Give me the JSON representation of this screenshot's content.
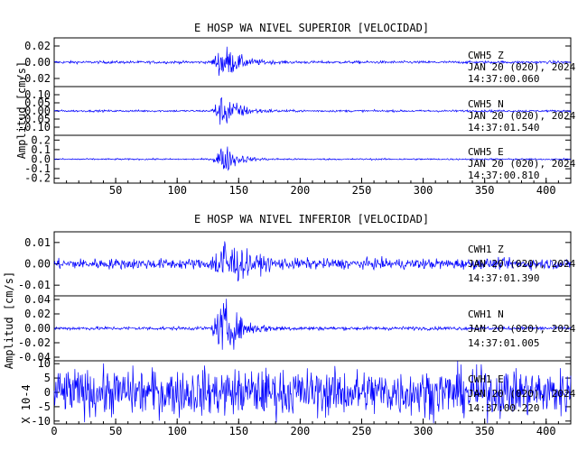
{
  "chart_data": [
    {
      "type": "line",
      "title": "E HOSP WA NIVEL SUPERIOR [VELOCIDAD]",
      "ylabel": "Amplitud [cm/s]",
      "xlabel": "",
      "xlim": [
        0,
        420
      ],
      "x_ticks": [
        50,
        100,
        150,
        200,
        250,
        300,
        350,
        400
      ],
      "x_tick_labels": [
        "50",
        "100",
        "150",
        "200",
        "250",
        "300",
        "350",
        "400"
      ],
      "trace_color": "#0000ff",
      "series": [
        {
          "name": "CWH5 Z",
          "info": [
            "CWH5   Z",
            "JAN 20 (020), 2024",
            "14:37:00.060"
          ],
          "ylim": [
            -0.03,
            0.03
          ],
          "yticks": [
            0.02,
            0.0,
            -0.02
          ],
          "ytick_labels": [
            "0.02",
            "0.00",
            "-0.02"
          ],
          "noise": 0.0008,
          "event_onset": 127,
          "event_peak": 0.02,
          "event_peak_time": 138,
          "event_decay": 12
        },
        {
          "name": "CWH5 N",
          "info": [
            "CWH5   N",
            "JAN 20 (020), 2024",
            "14:37:01.540"
          ],
          "ylim": [
            -0.15,
            0.15
          ],
          "yticks": [
            0.1,
            0.05,
            0.0,
            -0.05,
            -0.1
          ],
          "ytick_labels": [
            "0.10",
            "0.05",
            "0.00",
            "-0.05",
            "-0.10"
          ],
          "noise": 0.003,
          "event_onset": 127,
          "event_peak": 0.1,
          "event_peak_time": 138,
          "event_decay": 12
        },
        {
          "name": "CWH5 E",
          "info": [
            "CWH5   E",
            "JAN 20 (020), 2024",
            "14:37:00.810"
          ],
          "ylim": [
            -0.25,
            0.25
          ],
          "yticks": [
            0.2,
            0.1,
            0.0,
            -0.1,
            -0.2
          ],
          "ytick_labels": [
            "0.2",
            "0.1",
            "0.0",
            "-0.1",
            "-0.2"
          ],
          "noise": 0.004,
          "event_onset": 128,
          "event_peak": 0.15,
          "event_peak_time": 138,
          "event_decay": 10
        }
      ]
    },
    {
      "type": "line",
      "title": "E HOSP WA NIVEL INFERIOR [VELOCIDAD]",
      "ylabel": "Amplitud [cm/s]",
      "ylabel_bottom": "X 10-4",
      "xlabel": "",
      "xlim": [
        0,
        420
      ],
      "x_ticks": [
        0,
        50,
        100,
        150,
        200,
        250,
        300,
        350,
        400
      ],
      "x_tick_labels": [
        "0",
        "50",
        "100",
        "150",
        "200",
        "250",
        "300",
        "350",
        "400"
      ],
      "trace_color": "#0000ff",
      "series": [
        {
          "name": "CWH1 Z",
          "info": [
            "CWH1   Z",
            "JAN 20 (020), 2024",
            "14:37:01.390"
          ],
          "ylim": [
            -0.015,
            0.015
          ],
          "yticks": [
            0.01,
            0.0,
            -0.01
          ],
          "ytick_labels": [
            "0.01",
            "0.00",
            "-0.01"
          ],
          "noise": 0.0012,
          "event_onset": 127,
          "event_peak": 0.012,
          "event_peak_time": 138,
          "event_decay": 14
        },
        {
          "name": "CWH1 N",
          "info": [
            "CWH1   N",
            "JAN 20 (020), 2024",
            "14:37:01.005"
          ],
          "ylim": [
            -0.045,
            0.045
          ],
          "yticks": [
            0.04,
            0.02,
            0.0,
            -0.02,
            -0.04
          ],
          "ytick_labels": [
            "0.04",
            "0.02",
            "0.00",
            "-0.02",
            "-0.04"
          ],
          "noise": 0.0012,
          "event_onset": 127,
          "event_peak": 0.035,
          "event_peak_time": 138,
          "event_decay": 13
        },
        {
          "name": "CWH1 E",
          "info": [
            "CWH1   E",
            "JAN 20 (020), 2024",
            "14:37:00.220"
          ],
          "ylim": [
            -11,
            11
          ],
          "yticks": [
            10,
            5,
            0,
            -5,
            -10
          ],
          "ytick_labels": [
            "10",
            "5",
            "0",
            "-5",
            "-10"
          ],
          "noise": 4.0,
          "event_onset": 0,
          "event_peak": 0,
          "event_peak_time": 0,
          "event_decay": 10
        }
      ]
    }
  ]
}
